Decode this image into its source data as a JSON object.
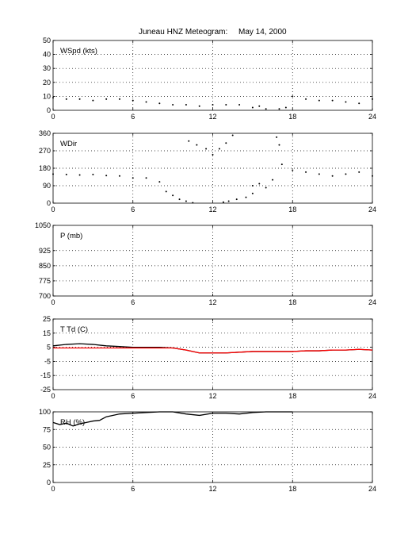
{
  "figure": {
    "title_left": "Juneau HNZ Meteogram:",
    "title_right": "May 14, 2000"
  },
  "chart_data": [
    {
      "type": "scatter",
      "label": "WSpd (kts)",
      "xlim": [
        0,
        24
      ],
      "ylim": [
        0,
        50
      ],
      "xticks": [
        0,
        6,
        12,
        18,
        24
      ],
      "yticks": [
        0,
        10,
        20,
        30,
        40,
        50
      ],
      "grid": true,
      "series": [
        {
          "color": "#000000",
          "x": [
            0,
            1,
            2,
            3,
            4,
            5,
            6,
            7,
            8,
            9,
            10,
            11,
            12,
            13,
            14,
            15,
            15.5,
            16,
            17,
            17.5,
            18,
            19,
            20,
            21,
            22,
            23,
            24
          ],
          "y": [
            9,
            8,
            8,
            7,
            8,
            8,
            7,
            6,
            5,
            4,
            4,
            3,
            4,
            4,
            4,
            2,
            3,
            1,
            1,
            2,
            10,
            8,
            7,
            7,
            6,
            5,
            8
          ]
        }
      ]
    },
    {
      "type": "scatter",
      "label": "WDir",
      "xlim": [
        0,
        24
      ],
      "ylim": [
        0,
        360
      ],
      "xticks": [
        0,
        6,
        12,
        18,
        24
      ],
      "yticks": [
        0,
        90,
        180,
        270,
        360
      ],
      "grid": true,
      "series": [
        {
          "color": "#000000",
          "x": [
            0,
            1,
            2,
            3,
            4,
            5,
            6,
            7,
            8,
            8.5,
            9,
            9.5,
            10,
            10.5,
            10.2,
            10.8,
            11.5,
            12,
            12.5,
            13,
            13.5,
            12.8,
            13.2,
            13.8,
            14.5,
            15,
            15,
            15.5,
            16,
            16.5,
            16.8,
            17,
            17.2,
            18,
            19,
            20,
            21,
            22,
            23,
            24
          ],
          "y": [
            150,
            148,
            145,
            148,
            142,
            140,
            130,
            130,
            110,
            60,
            40,
            20,
            10,
            2,
            320,
            300,
            280,
            250,
            280,
            310,
            350,
            5,
            10,
            20,
            30,
            50,
            90,
            100,
            80,
            120,
            340,
            300,
            200,
            170,
            160,
            150,
            140,
            150,
            160,
            140
          ]
        }
      ]
    },
    {
      "type": "line",
      "label": "P (mb)",
      "xlim": [
        0,
        24
      ],
      "ylim": [
        700,
        1050
      ],
      "xticks": [
        0,
        6,
        12,
        18,
        24
      ],
      "yticks": [
        700,
        775,
        850,
        925,
        1050
      ],
      "grid": true,
      "series": []
    },
    {
      "type": "line",
      "label": "T Td (C)",
      "xlim": [
        0,
        24
      ],
      "ylim": [
        -25,
        25
      ],
      "xticks": [
        0,
        6,
        12,
        18,
        24
      ],
      "yticks": [
        -25,
        -15,
        -5,
        5,
        15,
        25
      ],
      "grid": true,
      "series": [
        {
          "color": "#000000",
          "x": [
            0,
            1,
            2,
            3,
            4,
            5,
            6,
            7,
            8,
            9,
            10,
            11,
            12,
            13,
            14,
            15,
            16,
            17,
            18,
            19,
            20,
            21,
            22,
            23,
            24
          ],
          "y": [
            6,
            7,
            7.5,
            7,
            6,
            5.5,
            5,
            5,
            5,
            4.5,
            3,
            1,
            1,
            1,
            1.5,
            2,
            2,
            2,
            2,
            2.5,
            2.5,
            3,
            3,
            3.5,
            3
          ]
        },
        {
          "color": "#ff0000",
          "x": [
            0,
            1,
            2,
            3,
            4,
            5,
            6,
            7,
            8,
            9,
            10,
            11,
            12,
            13,
            14,
            15,
            16,
            17,
            18,
            19,
            20,
            21,
            22,
            23,
            24
          ],
          "y": [
            4.5,
            4.5,
            4.5,
            4.5,
            4.5,
            4.5,
            4.5,
            4.5,
            4.5,
            4.5,
            3,
            1,
            1,
            1,
            1.5,
            2,
            2,
            2,
            2,
            2.5,
            2.5,
            3,
            3,
            3.5,
            3
          ]
        }
      ]
    },
    {
      "type": "line",
      "label": "RH (%)",
      "xlim": [
        0,
        24
      ],
      "ylim": [
        0,
        100
      ],
      "xticks": [
        0,
        6,
        12,
        18,
        24
      ],
      "yticks": [
        0,
        25,
        50,
        75,
        100
      ],
      "grid": true,
      "series": [
        {
          "color": "#000000",
          "x": [
            0,
            0.5,
            1,
            1.5,
            2,
            2.5,
            3,
            3.5,
            4,
            5,
            6,
            7,
            8,
            9,
            10,
            11,
            12,
            13,
            14,
            15,
            16,
            17,
            18
          ],
          "y": [
            85,
            82,
            84,
            80,
            83,
            85,
            87,
            88,
            93,
            97,
            98,
            99,
            100,
            100,
            97,
            95,
            98,
            98,
            97,
            99,
            100,
            100,
            100
          ]
        }
      ]
    }
  ]
}
